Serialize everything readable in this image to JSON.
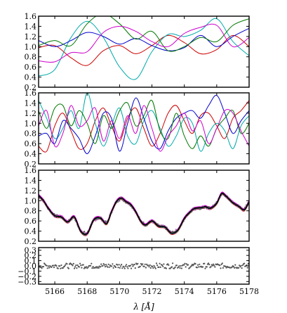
{
  "chart_data": [
    {
      "type": "line",
      "panel": "gp-samples-1",
      "xlim": [
        5165,
        5178
      ],
      "ylim": [
        0.2,
        1.6
      ],
      "yticks": [
        "0.2",
        "0.4",
        "0.6",
        "0.8",
        "1.0",
        "1.2",
        "1.4",
        "1.6"
      ],
      "grid": false,
      "series": [
        {
          "color": "#cc0000",
          "x": [
            5165,
            5166,
            5167,
            5168,
            5169,
            5170,
            5171,
            5172,
            5173,
            5174,
            5175,
            5176,
            5177,
            5178
          ],
          "y": [
            0.98,
            1.02,
            0.78,
            0.63,
            0.92,
            1.02,
            0.86,
            1.02,
            1.22,
            1.08,
            0.86,
            0.94,
            1.22,
            1.0
          ]
        },
        {
          "color": "#00aaaa",
          "x": [
            5165,
            5166,
            5167,
            5168,
            5169,
            5170,
            5171,
            5172,
            5173,
            5174,
            5175,
            5176,
            5177,
            5178
          ],
          "y": [
            0.42,
            0.55,
            1.18,
            1.5,
            1.18,
            0.6,
            0.36,
            0.9,
            1.24,
            1.2,
            1.32,
            1.55,
            1.1,
            0.82
          ]
        },
        {
          "color": "#0000cc",
          "x": [
            5165,
            5166,
            5167,
            5168,
            5169,
            5170,
            5171,
            5172,
            5173,
            5174,
            5175,
            5176,
            5177,
            5178
          ],
          "y": [
            1.12,
            1.0,
            1.12,
            1.28,
            1.2,
            1.05,
            1.16,
            1.02,
            0.92,
            0.98,
            1.22,
            1.0,
            1.2,
            1.36
          ]
        },
        {
          "color": "#007700",
          "x": [
            5165,
            5166,
            5167,
            5168,
            5169,
            5170,
            5171,
            5172,
            5173,
            5174,
            5175,
            5176,
            5177,
            5178
          ],
          "y": [
            1.02,
            1.12,
            1.02,
            1.45,
            1.65,
            1.45,
            1.15,
            1.3,
            0.92,
            1.0,
            1.18,
            1.1,
            1.42,
            1.55
          ]
        },
        {
          "color": "#cc00cc",
          "x": [
            5165,
            5166,
            5167,
            5168,
            5169,
            5170,
            5171,
            5172,
            5173,
            5174,
            5175,
            5176,
            5177,
            5178
          ],
          "y": [
            0.72,
            0.7,
            0.88,
            0.9,
            1.28,
            1.4,
            1.3,
            1.1,
            1.0,
            1.26,
            1.38,
            1.42,
            1.0,
            1.18
          ]
        }
      ]
    },
    {
      "type": "line",
      "panel": "gp-samples-2",
      "xlim": [
        5165,
        5178
      ],
      "ylim": [
        0.2,
        1.6
      ],
      "yticks": [
        "0.2",
        "0.4",
        "0.6",
        "0.8",
        "1.0",
        "1.2",
        "1.4",
        "1.6"
      ],
      "grid": false,
      "series": [
        {
          "color": "#cc0000",
          "x": [
            5165,
            5165.5,
            5166,
            5166.5,
            5167,
            5167.5,
            5168,
            5168.5,
            5169,
            5169.5,
            5170,
            5170.5,
            5171,
            5171.5,
            5172,
            5172.5,
            5173,
            5173.5,
            5174,
            5174.5,
            5175,
            5175.5,
            5176,
            5176.5,
            5177,
            5177.5,
            5178
          ],
          "y": [
            0.55,
            0.45,
            0.95,
            1.2,
            0.85,
            0.5,
            0.6,
            1.05,
            1.3,
            0.95,
            0.65,
            1.1,
            1.3,
            0.9,
            0.55,
            0.8,
            1.2,
            1.35,
            1.05,
            0.8,
            1.15,
            1.2,
            0.95,
            0.7,
            1.1,
            1.25,
            1.45
          ]
        },
        {
          "color": "#00aaaa",
          "x": [
            5165,
            5165.5,
            5166,
            5166.5,
            5167,
            5167.5,
            5168,
            5168.5,
            5169,
            5169.5,
            5170,
            5170.5,
            5171,
            5171.5,
            5172,
            5172.5,
            5173,
            5173.5,
            5174,
            5174.5,
            5175,
            5175.5,
            5176,
            5176.5,
            5177,
            5177.5,
            5178
          ],
          "y": [
            1.45,
            1.1,
            0.7,
            0.9,
            1.25,
            0.9,
            1.6,
            1.0,
            0.55,
            0.95,
            1.3,
            0.75,
            0.6,
            1.05,
            1.25,
            0.9,
            0.55,
            0.75,
            1.1,
            1.0,
            0.45,
            0.8,
            1.0,
            0.85,
            0.5,
            0.95,
            1.15
          ]
        },
        {
          "color": "#0000cc",
          "x": [
            5165,
            5165.5,
            5166,
            5166.5,
            5167,
            5167.5,
            5168,
            5168.5,
            5169,
            5169.5,
            5170,
            5170.5,
            5171,
            5171.5,
            5172,
            5172.5,
            5173,
            5173.5,
            5174,
            5174.5,
            5175,
            5175.5,
            5176,
            5176.5,
            5177,
            5177.5,
            5178
          ],
          "y": [
            0.75,
            0.8,
            0.6,
            1.05,
            0.9,
            0.7,
            0.4,
            0.75,
            1.2,
            1.1,
            0.45,
            1.0,
            1.5,
            1.1,
            0.65,
            0.5,
            0.85,
            1.1,
            1.2,
            1.25,
            1.1,
            1.35,
            1.55,
            1.2,
            0.8,
            1.05,
            1.25
          ]
        },
        {
          "color": "#007700",
          "x": [
            5165,
            5165.5,
            5166,
            5166.5,
            5167,
            5167.5,
            5168,
            5168.5,
            5169,
            5169.5,
            5170,
            5170.5,
            5171,
            5171.5,
            5172,
            5172.5,
            5173,
            5173.5,
            5174,
            5174.5,
            5175,
            5175.5,
            5176,
            5176.5,
            5177,
            5177.5,
            5178
          ],
          "y": [
            1.25,
            0.9,
            1.3,
            1.35,
            0.95,
            1.25,
            1.0,
            0.6,
            1.15,
            0.9,
            1.25,
            1.4,
            0.95,
            1.15,
            1.45,
            0.85,
            0.7,
            1.2,
            0.75,
            0.5,
            0.75,
            0.55,
            0.9,
            1.1,
            1.25,
            0.8,
            1.0
          ]
        },
        {
          "color": "#cc00cc",
          "x": [
            5165,
            5165.5,
            5166,
            5166.5,
            5167,
            5167.5,
            5168,
            5168.5,
            5169,
            5169.5,
            5170,
            5170.5,
            5171,
            5171.5,
            5172,
            5172.5,
            5173,
            5173.5,
            5174,
            5174.5,
            5175,
            5175.5,
            5176,
            5176.5,
            5177,
            5177.5,
            5178
          ],
          "y": [
            0.95,
            1.25,
            0.55,
            0.8,
            1.35,
            0.95,
            1.05,
            1.3,
            0.65,
            1.05,
            0.7,
            1.15,
            0.8,
            1.35,
            0.9,
            0.45,
            0.75,
            0.95,
            1.2,
            0.85,
            1.05,
            0.6,
            0.9,
            1.25,
            1.2,
            0.85,
            0.55
          ]
        }
      ]
    },
    {
      "type": "line",
      "panel": "spectrum-fit",
      "xlim": [
        5165,
        5178
      ],
      "ylim": [
        0.2,
        1.6
      ],
      "yticks": [
        "0.2",
        "0.4",
        "0.6",
        "0.8",
        "1.0",
        "1.2",
        "1.4",
        "1.6"
      ],
      "grid": false,
      "series": [
        {
          "color": "#000000",
          "x": [
            5165,
            5165.3,
            5165.6,
            5166,
            5166.4,
            5166.8,
            5167.2,
            5167.6,
            5168,
            5168.4,
            5168.8,
            5169.2,
            5169.5,
            5169.8,
            5170.1,
            5170.4,
            5170.7,
            5171,
            5171.3,
            5171.6,
            5172,
            5172.4,
            5172.8,
            5173.2,
            5173.6,
            5174,
            5174.3,
            5174.6,
            5175,
            5175.3,
            5175.6,
            5176,
            5176.3,
            5176.6,
            5177,
            5177.4,
            5177.7,
            5178
          ],
          "y": [
            1.1,
            1.0,
            0.85,
            0.7,
            0.68,
            0.58,
            0.68,
            0.4,
            0.35,
            0.62,
            0.66,
            0.55,
            0.78,
            0.98,
            1.05,
            0.98,
            0.92,
            0.78,
            0.6,
            0.52,
            0.6,
            0.5,
            0.48,
            0.36,
            0.42,
            0.65,
            0.76,
            0.84,
            0.86,
            0.88,
            0.85,
            0.95,
            1.14,
            1.08,
            0.96,
            0.88,
            0.82,
            0.98
          ]
        }
      ]
    },
    {
      "type": "scatter",
      "panel": "residuals",
      "xlim": [
        5165,
        5178
      ],
      "ylim": [
        -0.35,
        0.35
      ],
      "yticks": [
        "0.3",
        "0.2",
        "0.1",
        "0.0",
        "−0.1",
        "−0.2",
        "−0.3"
      ],
      "xticks": [
        "5166",
        "5168",
        "5170",
        "5172",
        "5174",
        "5176",
        "5178"
      ],
      "xlabel": "λ [Å]",
      "grid": false,
      "series": [
        {
          "color": "#555555",
          "x": [
            5165,
            5178
          ],
          "y": [
            0.0,
            0.0
          ],
          "spread": 0.05
        }
      ]
    }
  ]
}
